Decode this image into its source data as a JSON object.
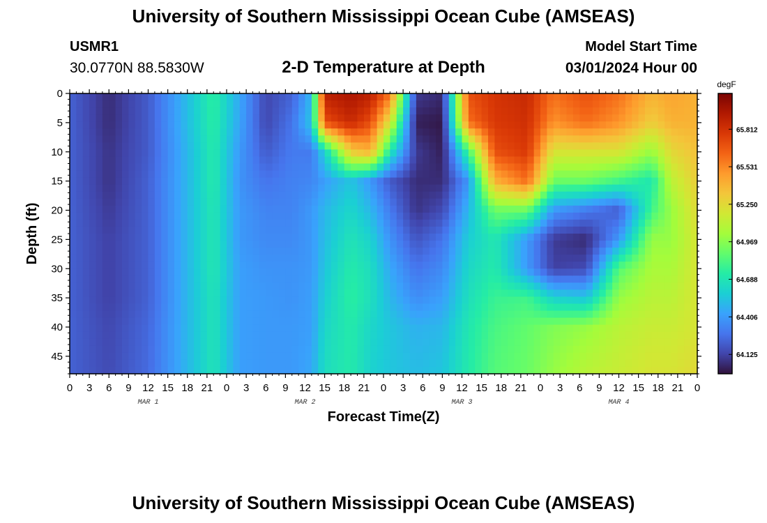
{
  "header": {
    "title": "University of Southern Mississippi Ocean Cube (AMSEAS)",
    "station": "USMR1",
    "coords": "30.0770N  88.5830W",
    "subtitle": "2-D Temperature at Depth",
    "model_start_label": "Model Start Time",
    "model_start_value": "03/01/2024 Hour 00"
  },
  "footer": {
    "title": "University of Southern Mississippi Ocean Cube (AMSEAS)"
  },
  "colors": {
    "colormap": [
      "#30123b",
      "#4145ab",
      "#4675ed",
      "#39a2fc",
      "#1bcfd4",
      "#24eca6",
      "#61fc6c",
      "#a4fc3b",
      "#d1e834",
      "#f3c63a",
      "#fe9b2d",
      "#f36315",
      "#d93806",
      "#b11901",
      "#7a0402"
    ]
  },
  "chart_data": {
    "type": "heatmap",
    "title": "2-D Temperature at Depth",
    "xlabel": "Forecast Time(Z)",
    "ylabel": "Depth (ft)",
    "x_range_hours": [
      0,
      96
    ],
    "ylim": [
      0,
      48
    ],
    "y_ticks": [
      "0",
      "5",
      "10",
      "15",
      "20",
      "25",
      "30",
      "35",
      "40",
      "45"
    ],
    "x_tick_labels": [
      "0",
      "3",
      "6",
      "9",
      "12",
      "15",
      "18",
      "21",
      "0",
      "3",
      "6",
      "9",
      "12",
      "15",
      "18",
      "21",
      "0",
      "3",
      "6",
      "9",
      "12",
      "15",
      "18",
      "21",
      "0",
      "3",
      "6",
      "9",
      "12",
      "15",
      "18",
      "21",
      "0"
    ],
    "day_labels": [
      "MAR 1",
      "MAR 2",
      "MAR 3",
      "MAR 4"
    ],
    "colorbar": {
      "unit": "degF",
      "range": [
        63.98,
        66.08
      ],
      "ticks": [
        "65.812",
        "65.531",
        "65.250",
        "64.969",
        "64.688",
        "64.406",
        "64.125"
      ]
    },
    "depth_levels_ft": [
      0,
      5,
      10,
      15,
      20,
      25,
      30,
      35,
      40,
      48
    ],
    "surface_nodes": [
      {
        "t": 0,
        "values": [
          64.22,
          64.22,
          64.22,
          64.22,
          64.22,
          64.22,
          64.22,
          64.22,
          64.22,
          64.22
        ]
      },
      {
        "t": 6,
        "values": [
          64.06,
          64.06,
          64.08,
          64.08,
          64.1,
          64.12,
          64.12,
          64.12,
          64.14,
          64.15
        ]
      },
      {
        "t": 12,
        "values": [
          64.2,
          64.2,
          64.2,
          64.22,
          64.22,
          64.22,
          64.22,
          64.22,
          64.24,
          64.25
        ]
      },
      {
        "t": 18,
        "values": [
          64.52,
          64.52,
          64.5,
          64.5,
          64.5,
          64.5,
          64.5,
          64.5,
          64.5,
          64.5
        ]
      },
      {
        "t": 22,
        "values": [
          64.75,
          64.74,
          64.72,
          64.72,
          64.7,
          64.7,
          64.7,
          64.68,
          64.68,
          64.68
        ]
      },
      {
        "t": 26,
        "values": [
          64.45,
          64.44,
          64.4,
          64.38,
          64.4,
          64.4,
          64.42,
          64.42,
          64.42,
          64.42
        ]
      },
      {
        "t": 30,
        "values": [
          64.14,
          64.14,
          64.2,
          64.28,
          64.33,
          64.35,
          64.38,
          64.4,
          64.4,
          64.4
        ]
      },
      {
        "t": 34,
        "values": [
          64.22,
          64.28,
          64.3,
          64.32,
          64.33,
          64.35,
          64.38,
          64.38,
          64.4,
          64.4
        ]
      },
      {
        "t": 37,
        "values": [
          64.5,
          64.55,
          64.3,
          64.34,
          64.4,
          64.4,
          64.4,
          64.42,
          64.42,
          64.45
        ]
      },
      {
        "t": 39,
        "values": [
          65.9,
          65.7,
          64.6,
          64.42,
          64.5,
          64.52,
          64.55,
          64.58,
          64.62,
          64.65
        ]
      },
      {
        "t": 43,
        "values": [
          65.95,
          65.85,
          65.3,
          64.55,
          64.62,
          64.68,
          64.72,
          64.75,
          64.72,
          64.72
        ]
      },
      {
        "t": 46,
        "values": [
          65.9,
          65.7,
          65.4,
          64.4,
          64.5,
          64.6,
          64.65,
          64.66,
          64.62,
          64.6
        ]
      },
      {
        "t": 49,
        "values": [
          65.6,
          65.2,
          64.7,
          64.2,
          64.3,
          64.38,
          64.45,
          64.5,
          64.55,
          64.55
        ]
      },
      {
        "t": 53,
        "values": [
          64.1,
          64.02,
          64.1,
          64.06,
          64.08,
          64.18,
          64.28,
          64.36,
          64.48,
          64.52
        ]
      },
      {
        "t": 57,
        "values": [
          64.05,
          64.0,
          64.02,
          64.06,
          64.15,
          64.28,
          64.35,
          64.42,
          64.5,
          64.55
        ]
      },
      {
        "t": 61,
        "values": [
          65.7,
          65.6,
          64.8,
          64.4,
          64.5,
          64.58,
          64.62,
          64.66,
          64.7,
          64.72
        ]
      },
      {
        "t": 65,
        "values": [
          65.8,
          65.78,
          65.7,
          65.4,
          64.9,
          64.7,
          64.72,
          64.78,
          64.82,
          64.85
        ]
      },
      {
        "t": 70,
        "values": [
          65.85,
          65.82,
          65.78,
          65.6,
          64.9,
          64.4,
          64.4,
          64.8,
          64.88,
          64.9
        ]
      },
      {
        "t": 74,
        "values": [
          65.6,
          65.5,
          65.2,
          64.9,
          64.4,
          64.1,
          64.12,
          64.6,
          64.95,
          65.0
        ]
      },
      {
        "t": 79,
        "values": [
          65.7,
          65.6,
          65.2,
          64.9,
          64.3,
          64.05,
          64.15,
          64.55,
          65.0,
          65.1
        ]
      },
      {
        "t": 84,
        "values": [
          65.6,
          65.5,
          65.2,
          64.8,
          64.2,
          64.4,
          64.85,
          65.0,
          65.1,
          65.15
        ]
      },
      {
        "t": 89,
        "values": [
          65.4,
          65.3,
          65.0,
          64.7,
          64.8,
          65.0,
          65.05,
          65.1,
          65.15,
          65.2
        ]
      },
      {
        "t": 92,
        "values": [
          65.45,
          65.4,
          65.25,
          65.1,
          65.0,
          65.0,
          65.05,
          65.1,
          65.15,
          65.2
        ]
      },
      {
        "t": 96,
        "values": [
          65.4,
          65.4,
          65.35,
          65.3,
          65.25,
          65.2,
          65.2,
          65.2,
          65.2,
          65.25
        ]
      }
    ]
  }
}
